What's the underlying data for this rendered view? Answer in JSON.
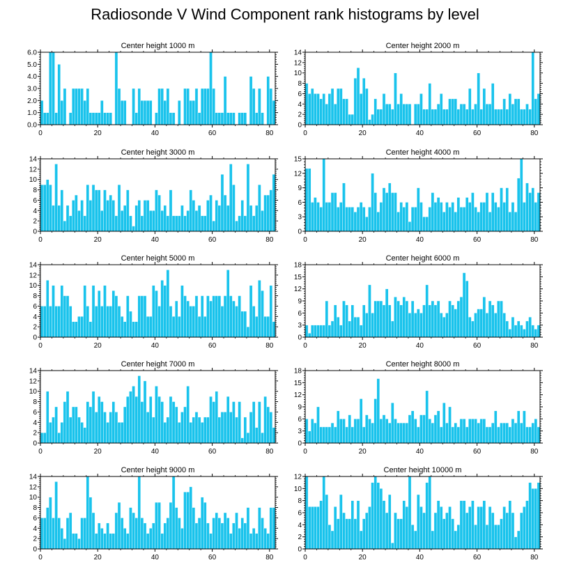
{
  "title": "Radiosonde V Wind Component rank histograms by level",
  "colors": {
    "bar": "#19c3ec",
    "axis": "#000000",
    "background": "#ffffff"
  },
  "chart_data": [
    {
      "type": "bar",
      "title": "Center height 1000 m",
      "xlim": [
        0,
        82
      ],
      "ylim": [
        0,
        6
      ],
      "xticks": [
        0,
        20,
        40,
        60,
        80
      ],
      "xtick_labels": [
        "0",
        "20",
        "40",
        "60",
        "80"
      ],
      "yticks": [
        0,
        1,
        2,
        3,
        4,
        5,
        6
      ],
      "ytick_labels": [
        "0.0",
        "1.0",
        "2.0",
        "3.0",
        "4.0",
        "5.0",
        "6.0"
      ],
      "values": [
        2,
        1,
        1,
        6,
        6,
        1,
        5,
        2,
        3,
        0,
        1,
        3,
        3,
        3,
        3,
        2,
        3,
        1,
        1,
        1,
        1,
        2,
        1,
        1,
        1,
        0,
        6,
        3,
        2,
        2,
        0,
        0,
        3,
        1,
        3,
        2,
        2,
        2,
        2,
        0,
        1,
        3,
        3,
        2,
        3,
        1,
        1,
        0,
        2,
        0,
        3,
        3,
        2,
        2,
        3,
        1,
        3,
        3,
        3,
        6,
        3,
        1,
        1,
        1,
        4,
        1,
        1,
        1,
        0,
        1,
        1,
        1,
        0,
        4,
        3,
        1,
        3,
        1,
        0,
        4,
        3,
        2
      ]
    },
    {
      "type": "bar",
      "title": "Center height 2000 m",
      "xlim": [
        0,
        82
      ],
      "ylim": [
        0,
        14
      ],
      "xticks": [
        0,
        20,
        40,
        60,
        80
      ],
      "xtick_labels": [
        "0",
        "20",
        "40",
        "60",
        "80"
      ],
      "yticks": [
        0,
        2,
        4,
        6,
        8,
        10,
        12,
        14
      ],
      "ytick_labels": [
        "0",
        "2",
        "4",
        "6",
        "8",
        "10",
        "12",
        "14"
      ],
      "values": [
        8,
        6,
        7,
        6,
        6,
        5,
        6,
        4,
        6,
        7,
        4,
        7,
        7,
        5,
        5,
        2,
        2,
        9,
        11,
        6,
        9,
        7,
        1,
        2,
        5,
        3,
        3,
        6,
        4,
        4,
        3,
        10,
        4,
        6,
        4,
        4,
        4,
        0,
        4,
        4,
        6,
        3,
        3,
        8,
        3,
        3,
        4,
        6,
        3,
        3,
        5,
        5,
        5,
        3,
        4,
        4,
        3,
        7,
        3,
        4,
        10,
        3,
        7,
        4,
        4,
        8,
        3,
        3,
        3,
        5,
        3,
        6,
        4,
        5,
        5,
        3,
        3,
        4,
        3,
        14,
        5,
        6
      ]
    },
    {
      "type": "bar",
      "title": "Center height 3000 m",
      "xlim": [
        0,
        82
      ],
      "ylim": [
        0,
        14
      ],
      "xticks": [
        0,
        20,
        40,
        60,
        80
      ],
      "xtick_labels": [
        "0",
        "20",
        "40",
        "60",
        "80"
      ],
      "yticks": [
        0,
        2,
        4,
        6,
        8,
        10,
        12,
        14
      ],
      "ytick_labels": [
        "0",
        "2",
        "4",
        "6",
        "8",
        "10",
        "12",
        "14"
      ],
      "values": [
        9,
        9,
        10,
        9,
        5,
        13,
        5,
        8,
        2,
        5,
        3,
        6,
        7,
        4,
        6,
        3,
        9,
        6,
        9,
        8,
        8,
        4,
        8,
        6,
        7,
        6,
        3,
        9,
        4,
        5,
        8,
        3,
        1,
        5,
        6,
        3,
        6,
        6,
        4,
        4,
        8,
        7,
        4,
        5,
        3,
        8,
        3,
        3,
        3,
        5,
        3,
        4,
        8,
        6,
        4,
        5,
        3,
        3,
        6,
        7,
        2,
        6,
        5,
        11,
        7,
        5,
        13,
        9,
        2,
        3,
        6,
        3,
        13,
        5,
        3,
        5,
        9,
        4,
        7,
        7,
        8,
        11
      ]
    },
    {
      "type": "bar",
      "title": "Center height 4000 m",
      "xlim": [
        0,
        82
      ],
      "ylim": [
        0,
        15
      ],
      "xticks": [
        0,
        20,
        40,
        60,
        80
      ],
      "xtick_labels": [
        "0",
        "20",
        "40",
        "60",
        "80"
      ],
      "yticks": [
        0,
        3,
        6,
        9,
        12,
        15
      ],
      "ytick_labels": [
        "0",
        "3",
        "6",
        "9",
        "12",
        "15"
      ],
      "values": [
        13,
        13,
        6,
        7,
        6,
        5,
        15,
        6,
        6,
        8,
        8,
        5,
        6,
        10,
        5,
        5,
        5,
        4,
        5,
        6,
        5,
        3,
        5,
        12,
        8,
        4,
        6,
        9,
        8,
        10,
        8,
        8,
        4,
        6,
        5,
        6,
        2,
        5,
        5,
        9,
        6,
        3,
        3,
        5,
        8,
        6,
        7,
        6,
        4,
        6,
        5,
        6,
        4,
        7,
        5,
        5,
        7,
        6,
        8,
        5,
        4,
        6,
        6,
        8,
        4,
        8,
        6,
        5,
        9,
        6,
        9,
        4,
        6,
        4,
        11,
        15,
        6,
        10,
        8,
        9,
        6,
        8
      ]
    },
    {
      "type": "bar",
      "title": "Center height 5000 m",
      "xlim": [
        0,
        82
      ],
      "ylim": [
        0,
        14
      ],
      "xticks": [
        0,
        20,
        40,
        60,
        80
      ],
      "xtick_labels": [
        "0",
        "20",
        "40",
        "60",
        "80"
      ],
      "yticks": [
        0,
        2,
        4,
        6,
        8,
        10,
        12,
        14
      ],
      "ytick_labels": [
        "0",
        "2",
        "4",
        "6",
        "8",
        "10",
        "12",
        "14"
      ],
      "values": [
        6,
        6,
        11,
        6,
        10,
        6,
        6,
        10,
        8,
        8,
        6,
        3,
        3,
        4,
        4,
        10,
        6,
        3,
        10,
        6,
        9,
        6,
        10,
        6,
        6,
        9,
        8,
        6,
        4,
        3,
        8,
        5,
        3,
        3,
        8,
        8,
        8,
        4,
        4,
        10,
        9,
        6,
        11,
        10,
        13,
        6,
        4,
        7,
        4,
        10,
        8,
        7,
        6,
        6,
        8,
        4,
        8,
        4,
        8,
        7,
        8,
        8,
        8,
        6,
        8,
        13,
        8,
        7,
        6,
        8,
        5,
        5,
        2,
        10,
        6,
        4,
        11,
        9,
        4,
        4,
        10,
        3
      ]
    },
    {
      "type": "bar",
      "title": "Center height 6000 m",
      "xlim": [
        0,
        82
      ],
      "ylim": [
        0,
        18
      ],
      "xticks": [
        0,
        20,
        40,
        60,
        80
      ],
      "xtick_labels": [
        "0",
        "20",
        "40",
        "60",
        "80"
      ],
      "yticks": [
        0,
        3,
        6,
        9,
        12,
        15,
        18
      ],
      "ytick_labels": [
        "0",
        "3",
        "6",
        "9",
        "12",
        "15",
        "18"
      ],
      "values": [
        3,
        1,
        3,
        3,
        3,
        3,
        3,
        9,
        3,
        4,
        8,
        5,
        3,
        9,
        8,
        4,
        8,
        5,
        5,
        3,
        8,
        6,
        13,
        6,
        9,
        9,
        9,
        8,
        12,
        8,
        4,
        10,
        9,
        8,
        10,
        9,
        6,
        9,
        6,
        7,
        6,
        8,
        13,
        8,
        9,
        8,
        9,
        6,
        5,
        6,
        9,
        8,
        7,
        9,
        10,
        16,
        14,
        5,
        4,
        6,
        7,
        7,
        10,
        6,
        9,
        8,
        6,
        9,
        9,
        6,
        4,
        2,
        5,
        3,
        4,
        3,
        2,
        4,
        5,
        3,
        2,
        3
      ]
    },
    {
      "type": "bar",
      "title": "Center height 7000 m",
      "xlim": [
        0,
        82
      ],
      "ylim": [
        0,
        14
      ],
      "xticks": [
        0,
        20,
        40,
        60,
        80
      ],
      "xtick_labels": [
        "0",
        "20",
        "40",
        "60",
        "80"
      ],
      "yticks": [
        0,
        2,
        4,
        6,
        8,
        10,
        12,
        14
      ],
      "ytick_labels": [
        "0",
        "2",
        "4",
        "6",
        "8",
        "10",
        "12",
        "14"
      ],
      "values": [
        2,
        2,
        10,
        4,
        5,
        7,
        2,
        4,
        8,
        10,
        5,
        7,
        7,
        5,
        4,
        3,
        8,
        7,
        10,
        6,
        9,
        8,
        6,
        4,
        6,
        8,
        6,
        4,
        4,
        7,
        9,
        10,
        11,
        9,
        13,
        8,
        12,
        6,
        9,
        5,
        11,
        9,
        8,
        4,
        5,
        9,
        8,
        7,
        4,
        6,
        7,
        11,
        4,
        5,
        6,
        5,
        4,
        5,
        5,
        9,
        8,
        10,
        5,
        6,
        6,
        9,
        6,
        8,
        5,
        8,
        1,
        5,
        2,
        6,
        8,
        3,
        8,
        2,
        9,
        7,
        6,
        3
      ]
    },
    {
      "type": "bar",
      "title": "Center height 8000 m",
      "xlim": [
        0,
        82
      ],
      "ylim": [
        0,
        18
      ],
      "xticks": [
        0,
        20,
        40,
        60,
        80
      ],
      "xtick_labels": [
        "0",
        "20",
        "40",
        "60",
        "80"
      ],
      "yticks": [
        0,
        3,
        6,
        9,
        12,
        15,
        18
      ],
      "ytick_labels": [
        "0",
        "3",
        "6",
        "9",
        "12",
        "15",
        "18"
      ],
      "values": [
        6,
        3,
        6,
        5,
        9,
        4,
        4,
        4,
        4,
        5,
        4,
        8,
        6,
        6,
        4,
        7,
        4,
        6,
        6,
        11,
        4,
        7,
        6,
        5,
        11,
        16,
        6,
        7,
        6,
        5,
        10,
        6,
        5,
        5,
        5,
        5,
        7,
        8,
        6,
        4,
        7,
        7,
        13,
        6,
        5,
        7,
        8,
        4,
        10,
        5,
        9,
        4,
        5,
        4,
        6,
        6,
        4,
        6,
        6,
        6,
        5,
        6,
        6,
        4,
        4,
        5,
        8,
        4,
        5,
        5,
        5,
        4,
        6,
        5,
        8,
        5,
        8,
        4,
        4,
        5,
        6,
        4
      ]
    },
    {
      "type": "bar",
      "title": "Center height 9000 m",
      "xlim": [
        0,
        82
      ],
      "ylim": [
        0,
        14
      ],
      "xticks": [
        0,
        20,
        40,
        60,
        80
      ],
      "xtick_labels": [
        "0",
        "20",
        "40",
        "60",
        "80"
      ],
      "yticks": [
        0,
        2,
        4,
        6,
        8,
        10,
        12,
        14
      ],
      "ytick_labels": [
        "0",
        "2",
        "4",
        "6",
        "8",
        "10",
        "12",
        "14"
      ],
      "values": [
        6,
        6,
        8,
        10,
        6,
        13,
        6,
        4,
        2,
        6,
        7,
        3,
        3,
        2,
        6,
        6,
        14,
        10,
        7,
        3,
        5,
        4,
        3,
        5,
        3,
        3,
        7,
        9,
        6,
        4,
        3,
        8,
        7,
        6,
        14,
        6,
        5,
        3,
        4,
        5,
        9,
        9,
        3,
        5,
        6,
        9,
        14,
        8,
        6,
        4,
        11,
        11,
        12,
        8,
        5,
        6,
        10,
        9,
        5,
        3,
        6,
        7,
        6,
        5,
        7,
        6,
        3,
        5,
        7,
        4,
        6,
        5,
        8,
        3,
        4,
        3,
        8,
        6,
        4,
        3,
        8,
        8
      ]
    },
    {
      "type": "bar",
      "title": "Center height 10000 m",
      "xlim": [
        0,
        82
      ],
      "ylim": [
        0,
        12
      ],
      "xticks": [
        0,
        20,
        40,
        60,
        80
      ],
      "xtick_labels": [
        "0",
        "20",
        "40",
        "60",
        "80"
      ],
      "yticks": [
        0,
        2,
        4,
        6,
        8,
        10,
        12
      ],
      "ytick_labels": [
        "0",
        "2",
        "4",
        "6",
        "8",
        "10",
        "12"
      ],
      "values": [
        12,
        7,
        7,
        7,
        7,
        8,
        12,
        9,
        4,
        3,
        7,
        5,
        9,
        6,
        5,
        5,
        8,
        5,
        8,
        3,
        5,
        6,
        7,
        11,
        12,
        11,
        10,
        8,
        6,
        9,
        1,
        6,
        5,
        5,
        8,
        7,
        12,
        4,
        3,
        9,
        7,
        6,
        11,
        12,
        3,
        6,
        8,
        7,
        5,
        6,
        7,
        5,
        3,
        4,
        8,
        8,
        6,
        7,
        8,
        4,
        7,
        7,
        8,
        4,
        7,
        6,
        4,
        4,
        5,
        7,
        6,
        8,
        6,
        2,
        3,
        6,
        7,
        8,
        11,
        10,
        10,
        11
      ]
    }
  ]
}
